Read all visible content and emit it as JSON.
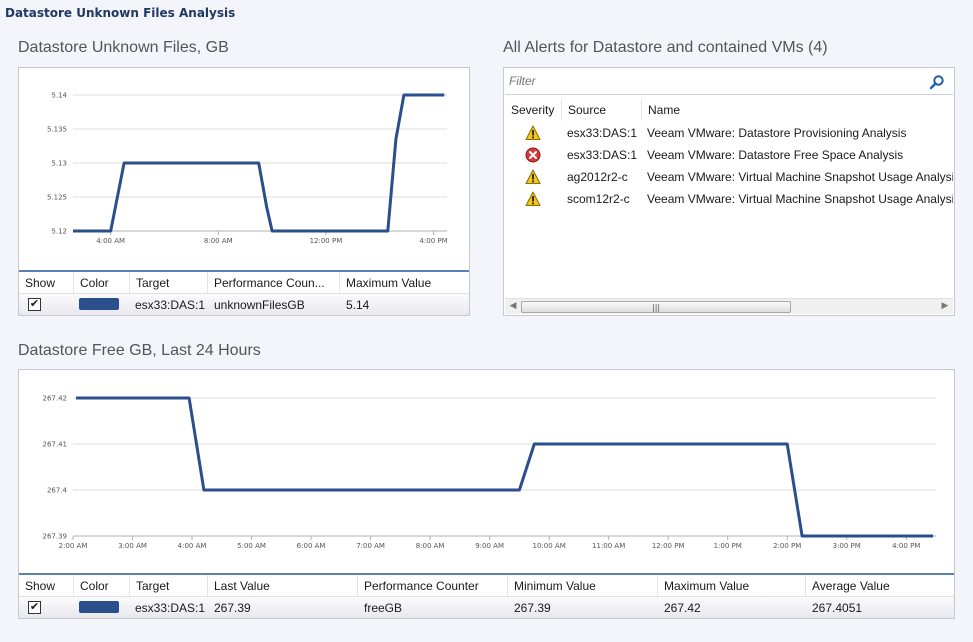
{
  "page_title": "Datastore Unknown Files Analysis",
  "chart1": {
    "title": "Datastore Unknown Files, GB",
    "legend_headers": [
      "Show",
      "Color",
      "Target",
      "Performance Coun...",
      "Maximum Value"
    ],
    "legend_row": {
      "checked": "✔",
      "target": "esx33:DAS:1",
      "counter": "unknownFilesGB",
      "max": "5.14"
    }
  },
  "alerts": {
    "title": "All Alerts for Datastore and contained VMs (4)",
    "filter_placeholder": "Filter",
    "headers": [
      "Severity",
      "Source",
      "Name"
    ],
    "rows": [
      {
        "severity": "warning",
        "source": "esx33:DAS:1",
        "name": "Veeam VMware: Datastore Provisioning Analysis"
      },
      {
        "severity": "critical",
        "source": "esx33:DAS:1",
        "name": "Veeam VMware: Datastore Free Space Analysis"
      },
      {
        "severity": "warning",
        "source": "ag2012r2-c",
        "name": "Veeam VMware: Virtual Machine Snapshot Usage Analysis"
      },
      {
        "severity": "warning",
        "source": "scom12r2-c",
        "name": "Veeam VMware: Virtual Machine Snapshot Usage Analysis"
      }
    ]
  },
  "chart2": {
    "title": "Datastore Free GB, Last 24 Hours",
    "legend_headers": [
      "Show",
      "Color",
      "Target",
      "Last Value",
      "Performance Counter",
      "Minimum Value",
      "Maximum Value",
      "Average Value"
    ],
    "legend_row": {
      "checked": "✔",
      "target": "esx33:DAS:1",
      "last": "267.39",
      "counter": "freeGB",
      "min": "267.39",
      "max": "267.42",
      "avg": "267.4051"
    }
  },
  "chart_data": [
    {
      "type": "line",
      "color": "#2b4e8c",
      "y_ticks": [
        "5.12",
        "5.125",
        "5.13",
        "5.135",
        "5.14"
      ],
      "ylim": [
        5.12,
        5.14
      ],
      "x_ticks": [
        "4:00 AM",
        "8:00 AM",
        "12:00 PM",
        "4:00 PM"
      ],
      "x_tick_hours": [
        4,
        8,
        12,
        16
      ],
      "xlim": [
        2.6,
        16.5
      ],
      "series": [
        {
          "x": [
            2.6,
            4.0,
            4.5,
            9.5,
            9.8,
            10.0,
            14.3,
            14.6,
            14.9,
            16.4
          ],
          "y": [
            5.12,
            5.12,
            5.13,
            5.13,
            5.1235,
            5.12,
            5.12,
            5.1335,
            5.14,
            5.14
          ]
        }
      ]
    },
    {
      "type": "line",
      "color": "#2b4e8c",
      "y_ticks": [
        "267.39",
        "267.4",
        "267.41",
        "267.42"
      ],
      "ylim": [
        267.39,
        267.42
      ],
      "x_ticks": [
        "2:00 AM",
        "3:00 AM",
        "4:00 AM",
        "5:00 AM",
        "6:00 AM",
        "7:00 AM",
        "8:00 AM",
        "9:00 AM",
        "10:00 AM",
        "11:00 AM",
        "12:00 PM",
        "1:00 PM",
        "2:00 PM",
        "3:00 PM",
        "4:00 PM"
      ],
      "x_tick_hours": [
        2,
        3,
        4,
        5,
        6,
        7,
        8,
        9,
        10,
        11,
        12,
        13,
        14,
        15,
        16
      ],
      "xlim": [
        2,
        16.5
      ],
      "series": [
        {
          "x": [
            2.05,
            3.95,
            4.2,
            9.5,
            9.75,
            14.0,
            14.25,
            16.45
          ],
          "y": [
            267.42,
            267.42,
            267.4,
            267.4,
            267.41,
            267.41,
            267.39,
            267.39
          ]
        }
      ]
    }
  ]
}
